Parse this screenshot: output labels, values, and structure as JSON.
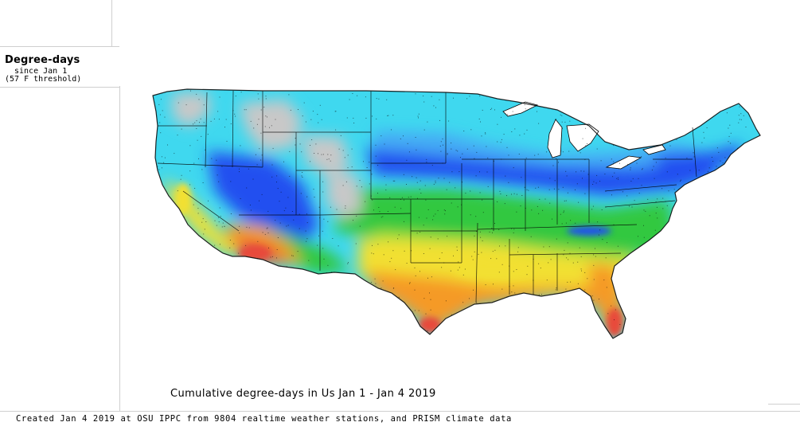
{
  "legend": {
    "title": "Degree-days",
    "since": "since Jan 1",
    "threshold": "(57 F threshold)"
  },
  "map": {
    "title": "Cumulative degree-days in Us  Jan 1 - Jan 4 2019",
    "region": "Contiguous United States",
    "colors": {
      "no_data_gray": "#c8c8c8",
      "cyan": "#3fd8ef",
      "light_blue": "#45a9f5",
      "blue": "#2450f0",
      "green": "#30c840",
      "yellow_green": "#a6e040",
      "yellow": "#f2e030",
      "orange": "#f59a28",
      "red": "#e8483a",
      "boundary": "#000000"
    }
  },
  "footer": {
    "credit": "Created Jan 4 2019 at OSU IPPC from 9804 realtime weather stations, and PRISM climate data"
  }
}
